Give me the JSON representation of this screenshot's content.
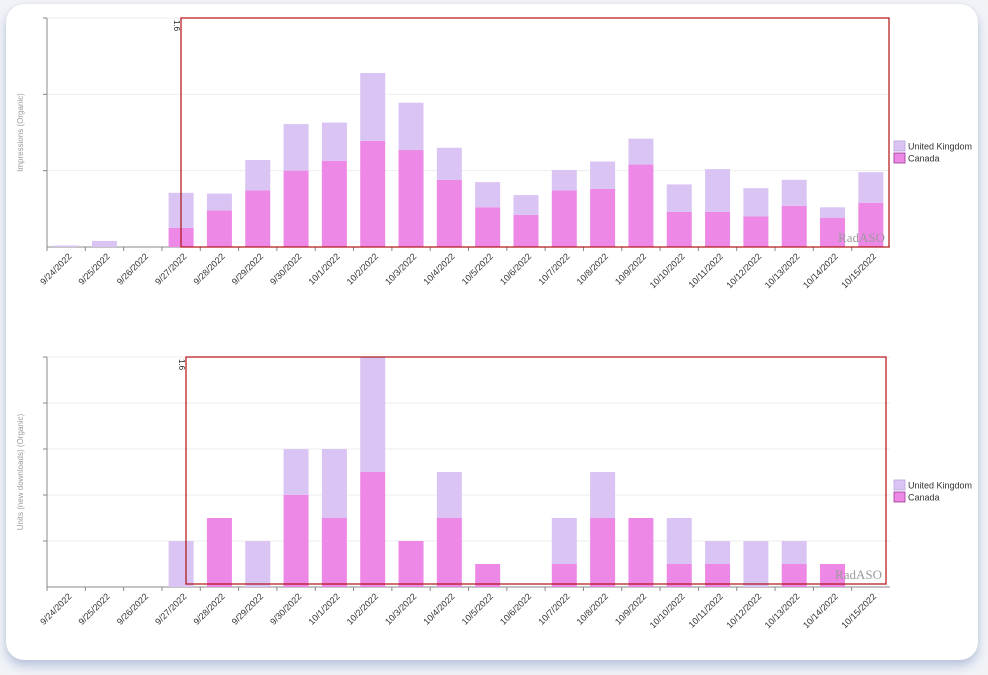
{
  "colors": {
    "united_kingdom": "#d9c4f4",
    "canada": "#ee88e6",
    "canada_border": "#9a3a95",
    "uk_border": "#b9a6da",
    "highlight_box": "#b01212"
  },
  "chart_data": [
    {
      "type": "bar",
      "stacked": true,
      "ylabel": "Impressions (Organic)",
      "categories": [
        "9/24/2022",
        "9/25/2022",
        "9/26/2022",
        "9/27/2022",
        "9/28/2022",
        "9/29/2022",
        "9/30/2022",
        "10/1/2022",
        "10/2/2022",
        "10/3/2022",
        "10/4/2022",
        "10/5/2022",
        "10/6/2022",
        "10/7/2022",
        "10/8/2022",
        "10/9/2022",
        "10/10/2022",
        "10/11/2022",
        "10/12/2022",
        "10/13/2022",
        "10/14/2022",
        "10/15/2022"
      ],
      "series": [
        {
          "name": "Canada",
          "values": [
            0,
            0,
            0,
            0.25,
            0.48,
            0.74,
            1.0,
            1.13,
            1.39,
            1.27,
            0.88,
            0.52,
            0.42,
            0.74,
            0.76,
            1.08,
            0.46,
            0.46,
            0.4,
            0.54,
            0.38,
            0.58
          ]
        },
        {
          "name": "United Kingdom",
          "values": [
            0.02,
            0.08,
            0,
            0.46,
            0.22,
            0.4,
            0.61,
            0.5,
            0.89,
            0.62,
            0.42,
            0.33,
            0.26,
            0.27,
            0.36,
            0.34,
            0.36,
            0.56,
            0.37,
            0.34,
            0.14,
            0.4
          ]
        }
      ],
      "ylim": [
        0,
        3
      ],
      "y_gridlines": [
        1,
        2,
        3
      ],
      "grid": true,
      "legend": {
        "placement": "right",
        "entries": [
          "United Kingdom",
          "Canada"
        ]
      },
      "watermark": "RadASO",
      "annotation": "1.6",
      "highlight_range": [
        "9/27/2022",
        "10/15/2022"
      ]
    },
    {
      "type": "bar",
      "stacked": true,
      "ylabel": "Units (new downloads) (Organic)",
      "categories": [
        "9/24/2022",
        "9/25/2022",
        "9/26/2022",
        "9/27/2022",
        "9/28/2022",
        "9/29/2022",
        "9/30/2022",
        "10/1/2022",
        "10/2/2022",
        "10/3/2022",
        "10/4/2022",
        "10/5/2022",
        "10/6/2022",
        "10/7/2022",
        "10/8/2022",
        "10/9/2022",
        "10/10/2022",
        "10/11/2022",
        "10/12/2022",
        "10/13/2022",
        "10/14/2022",
        "10/15/2022"
      ],
      "series": [
        {
          "name": "Canada",
          "values": [
            0,
            0,
            0,
            0,
            3,
            0,
            4,
            3,
            5,
            2,
            3,
            1,
            0,
            1,
            3,
            3,
            1,
            1,
            0,
            1,
            1,
            0
          ]
        },
        {
          "name": "United Kingdom",
          "values": [
            0,
            0,
            0,
            2,
            0,
            2,
            2,
            3,
            5,
            0,
            2,
            0,
            0,
            2,
            2,
            0,
            2,
            1,
            2,
            1,
            0,
            0
          ]
        }
      ],
      "ylim": [
        0,
        10
      ],
      "y_gridlines": [
        2,
        4,
        6,
        8,
        10
      ],
      "grid": true,
      "legend": {
        "placement": "right",
        "entries": [
          "United Kingdom",
          "Canada"
        ]
      },
      "watermark": "RadASO",
      "annotation": "1.6",
      "highlight_range": [
        "9/27/2022",
        "10/15/2022"
      ]
    }
  ]
}
